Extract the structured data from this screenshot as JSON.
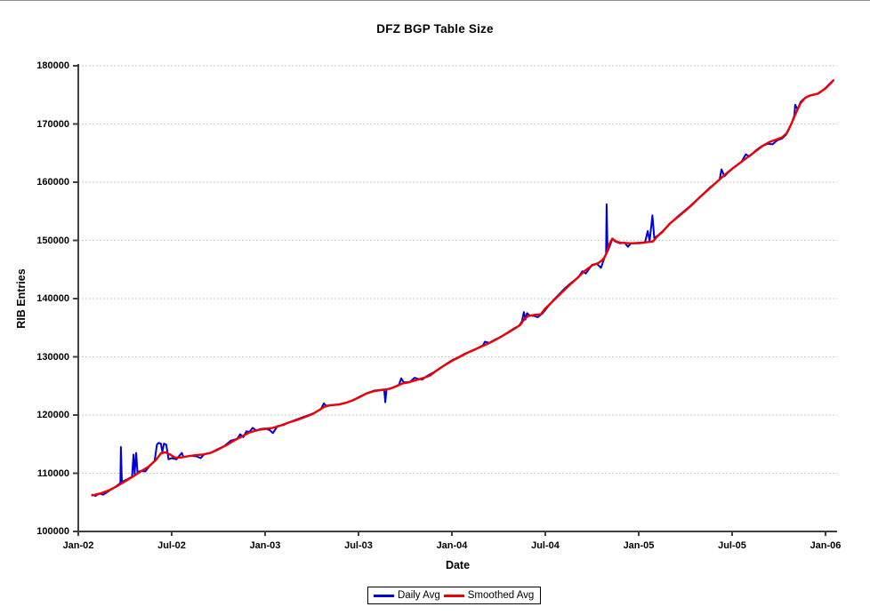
{
  "chart_data": {
    "type": "line",
    "title": "DFZ BGP Table Size",
    "xlabel": "Date",
    "ylabel": "RIB Entries",
    "x_ticks": [
      "Jan-02",
      "Jul-02",
      "Jan-03",
      "Jul-03",
      "Jan-04",
      "Jul-04",
      "Jan-05",
      "Jul-05",
      "Jan-06"
    ],
    "y_ticks": [
      "100000",
      "110000",
      "120000",
      "130000",
      "140000",
      "150000",
      "160000",
      "170000",
      "180000"
    ],
    "ylim": [
      100000,
      180000
    ],
    "xlim_months_from_jan02": [
      0,
      48.8
    ],
    "grid": "horizontal dotted lines at each 10000",
    "legend_position": "bottom-center",
    "axis_color": "#404040",
    "grid_color": "#c9c9c9",
    "background_color": "#ffffff",
    "series": [
      {
        "name": "Daily Avg",
        "color": "#0000d8",
        "points": [
          [
            0.9,
            106300
          ],
          [
            1.1,
            106100
          ],
          [
            1.35,
            106500
          ],
          [
            1.6,
            106300
          ],
          [
            2.0,
            107000
          ],
          [
            2.4,
            107700
          ],
          [
            2.7,
            108300
          ],
          [
            2.74,
            114500
          ],
          [
            2.8,
            108500
          ],
          [
            3.1,
            108900
          ],
          [
            3.45,
            109400
          ],
          [
            3.55,
            113200
          ],
          [
            3.62,
            109900
          ],
          [
            3.72,
            113500
          ],
          [
            3.8,
            110200
          ],
          [
            4.0,
            110400
          ],
          [
            4.3,
            110300
          ],
          [
            4.6,
            111300
          ],
          [
            4.9,
            112100
          ],
          [
            5.05,
            114900
          ],
          [
            5.15,
            115200
          ],
          [
            5.3,
            115100
          ],
          [
            5.4,
            113700
          ],
          [
            5.5,
            115100
          ],
          [
            5.65,
            114900
          ],
          [
            5.8,
            112400
          ],
          [
            6.0,
            112600
          ],
          [
            6.3,
            112400
          ],
          [
            6.65,
            113500
          ],
          [
            6.75,
            112800
          ],
          [
            7.2,
            113000
          ],
          [
            7.6,
            112900
          ],
          [
            7.85,
            112600
          ],
          [
            8.1,
            113300
          ],
          [
            8.5,
            113500
          ],
          [
            9.0,
            114200
          ],
          [
            9.4,
            114700
          ],
          [
            9.8,
            115600
          ],
          [
            10.2,
            115900
          ],
          [
            10.4,
            116700
          ],
          [
            10.6,
            116200
          ],
          [
            10.8,
            117200
          ],
          [
            11.0,
            117100
          ],
          [
            11.2,
            117800
          ],
          [
            11.45,
            117300
          ],
          [
            11.7,
            117600
          ],
          [
            12.0,
            117700
          ],
          [
            12.3,
            117400
          ],
          [
            12.5,
            116900
          ],
          [
            12.8,
            118100
          ],
          [
            13.2,
            118300
          ],
          [
            13.6,
            118800
          ],
          [
            14.0,
            119200
          ],
          [
            14.4,
            119600
          ],
          [
            14.8,
            120000
          ],
          [
            15.2,
            120400
          ],
          [
            15.6,
            121100
          ],
          [
            15.78,
            122000
          ],
          [
            15.9,
            121600
          ],
          [
            16.3,
            121700
          ],
          [
            16.8,
            121800
          ],
          [
            17.3,
            122200
          ],
          [
            17.7,
            122600
          ],
          [
            18.1,
            123200
          ],
          [
            18.6,
            123800
          ],
          [
            19.0,
            124200
          ],
          [
            19.4,
            124300
          ],
          [
            19.65,
            124400
          ],
          [
            19.72,
            122200
          ],
          [
            19.8,
            124400
          ],
          [
            20.2,
            124700
          ],
          [
            20.6,
            125200
          ],
          [
            20.75,
            126300
          ],
          [
            20.9,
            125600
          ],
          [
            21.3,
            125700
          ],
          [
            21.6,
            126400
          ],
          [
            21.85,
            126200
          ],
          [
            22.1,
            126100
          ],
          [
            22.4,
            126700
          ],
          [
            22.8,
            127300
          ],
          [
            23.2,
            128000
          ],
          [
            23.6,
            128700
          ],
          [
            24.0,
            129400
          ],
          [
            24.4,
            129900
          ],
          [
            24.8,
            130500
          ],
          [
            25.2,
            130900
          ],
          [
            25.6,
            131400
          ],
          [
            26.0,
            132000
          ],
          [
            26.12,
            132600
          ],
          [
            26.4,
            132400
          ],
          [
            26.8,
            133000
          ],
          [
            27.2,
            133500
          ],
          [
            27.6,
            134200
          ],
          [
            28.0,
            134900
          ],
          [
            28.3,
            135300
          ],
          [
            28.5,
            136100
          ],
          [
            28.62,
            137700
          ],
          [
            28.72,
            136400
          ],
          [
            28.82,
            137500
          ],
          [
            29.0,
            137100
          ],
          [
            29.3,
            137000
          ],
          [
            29.5,
            136800
          ],
          [
            29.8,
            137400
          ],
          [
            30.1,
            138400
          ],
          [
            30.5,
            139700
          ],
          [
            30.9,
            140800
          ],
          [
            31.3,
            141900
          ],
          [
            31.7,
            142800
          ],
          [
            32.1,
            143600
          ],
          [
            32.38,
            144700
          ],
          [
            32.6,
            144300
          ],
          [
            33.0,
            145800
          ],
          [
            33.3,
            146000
          ],
          [
            33.58,
            145300
          ],
          [
            33.8,
            147000
          ],
          [
            33.9,
            147600
          ],
          [
            33.94,
            156200
          ],
          [
            34.0,
            148100
          ],
          [
            34.15,
            149100
          ],
          [
            34.3,
            150200
          ],
          [
            34.5,
            149800
          ],
          [
            34.8,
            149500
          ],
          [
            35.1,
            149600
          ],
          [
            35.3,
            148900
          ],
          [
            35.5,
            149500
          ],
          [
            36.0,
            149500
          ],
          [
            36.4,
            149600
          ],
          [
            36.58,
            151600
          ],
          [
            36.7,
            149900
          ],
          [
            36.88,
            154300
          ],
          [
            37.0,
            150400
          ],
          [
            37.3,
            151000
          ],
          [
            37.7,
            152000
          ],
          [
            38.1,
            153100
          ],
          [
            38.5,
            154100
          ],
          [
            38.9,
            155000
          ],
          [
            39.3,
            155900
          ],
          [
            39.7,
            156900
          ],
          [
            40.1,
            157900
          ],
          [
            40.5,
            158900
          ],
          [
            40.9,
            159800
          ],
          [
            41.2,
            160500
          ],
          [
            41.32,
            162200
          ],
          [
            41.5,
            161000
          ],
          [
            41.8,
            161800
          ],
          [
            42.2,
            162700
          ],
          [
            42.6,
            163500
          ],
          [
            42.88,
            164800
          ],
          [
            43.1,
            164400
          ],
          [
            43.5,
            165400
          ],
          [
            43.9,
            166200
          ],
          [
            44.3,
            166600
          ],
          [
            44.6,
            166500
          ],
          [
            44.9,
            167200
          ],
          [
            45.2,
            167500
          ],
          [
            45.45,
            168100
          ],
          [
            45.65,
            169100
          ],
          [
            45.85,
            170300
          ],
          [
            46.0,
            171500
          ],
          [
            46.05,
            173300
          ],
          [
            46.2,
            172500
          ],
          [
            46.4,
            173800
          ],
          [
            46.6,
            174300
          ],
          [
            46.9,
            174800
          ],
          [
            47.2,
            175000
          ],
          [
            47.6,
            175300
          ],
          [
            48.0,
            176200
          ],
          [
            48.3,
            177000
          ],
          [
            48.5,
            177500
          ]
        ]
      },
      {
        "name": "Smoothed Avg",
        "color": "#ee0000",
        "points": [
          [
            0.9,
            106200
          ],
          [
            1.5,
            106600
          ],
          [
            2.0,
            107100
          ],
          [
            2.5,
            107800
          ],
          [
            3.0,
            108600
          ],
          [
            3.5,
            109400
          ],
          [
            4.0,
            110300
          ],
          [
            4.5,
            111100
          ],
          [
            5.0,
            112300
          ],
          [
            5.3,
            113400
          ],
          [
            5.6,
            113600
          ],
          [
            5.9,
            113200
          ],
          [
            6.2,
            112700
          ],
          [
            6.6,
            112700
          ],
          [
            7.0,
            112900
          ],
          [
            7.5,
            113100
          ],
          [
            8.0,
            113200
          ],
          [
            8.5,
            113500
          ],
          [
            9.0,
            114100
          ],
          [
            9.5,
            114800
          ],
          [
            10.0,
            115600
          ],
          [
            10.5,
            116300
          ],
          [
            11.0,
            117000
          ],
          [
            11.5,
            117400
          ],
          [
            12.0,
            117600
          ],
          [
            12.5,
            117800
          ],
          [
            13.0,
            118200
          ],
          [
            13.5,
            118700
          ],
          [
            14.0,
            119100
          ],
          [
            14.5,
            119600
          ],
          [
            15.0,
            120100
          ],
          [
            15.5,
            120900
          ],
          [
            15.8,
            121400
          ],
          [
            16.2,
            121700
          ],
          [
            16.7,
            121800
          ],
          [
            17.2,
            122100
          ],
          [
            17.6,
            122500
          ],
          [
            18.0,
            123000
          ],
          [
            18.5,
            123700
          ],
          [
            19.0,
            124100
          ],
          [
            19.5,
            124300
          ],
          [
            20.0,
            124500
          ],
          [
            20.4,
            124900
          ],
          [
            20.8,
            125400
          ],
          [
            21.2,
            125600
          ],
          [
            21.7,
            126000
          ],
          [
            22.2,
            126400
          ],
          [
            22.6,
            126800
          ],
          [
            23.0,
            127600
          ],
          [
            23.5,
            128500
          ],
          [
            24.0,
            129300
          ],
          [
            24.5,
            130000
          ],
          [
            25.0,
            130700
          ],
          [
            25.5,
            131300
          ],
          [
            26.0,
            131900
          ],
          [
            26.5,
            132500
          ],
          [
            27.0,
            133200
          ],
          [
            27.5,
            134000
          ],
          [
            28.0,
            134800
          ],
          [
            28.4,
            135500
          ],
          [
            28.65,
            136500
          ],
          [
            28.9,
            137000
          ],
          [
            29.3,
            137200
          ],
          [
            29.7,
            137300
          ],
          [
            30.0,
            138300
          ],
          [
            30.5,
            139600
          ],
          [
            31.0,
            140900
          ],
          [
            31.5,
            142200
          ],
          [
            32.0,
            143400
          ],
          [
            32.5,
            144700
          ],
          [
            33.0,
            145700
          ],
          [
            33.4,
            146100
          ],
          [
            33.7,
            146700
          ],
          [
            33.9,
            147600
          ],
          [
            34.1,
            149300
          ],
          [
            34.3,
            150300
          ],
          [
            34.5,
            149900
          ],
          [
            34.8,
            149600
          ],
          [
            35.5,
            149500
          ],
          [
            36.2,
            149600
          ],
          [
            36.9,
            149800
          ],
          [
            37.2,
            150700
          ],
          [
            37.5,
            151400
          ],
          [
            38.0,
            152900
          ],
          [
            38.5,
            154000
          ],
          [
            39.0,
            155100
          ],
          [
            39.5,
            156300
          ],
          [
            40.0,
            157600
          ],
          [
            40.5,
            158800
          ],
          [
            41.0,
            160000
          ],
          [
            41.5,
            161200
          ],
          [
            42.0,
            162300
          ],
          [
            42.5,
            163300
          ],
          [
            43.0,
            164300
          ],
          [
            43.5,
            165300
          ],
          [
            44.0,
            166300
          ],
          [
            44.4,
            166900
          ],
          [
            44.8,
            167300
          ],
          [
            45.2,
            167700
          ],
          [
            45.5,
            168400
          ],
          [
            45.8,
            170000
          ],
          [
            46.1,
            171900
          ],
          [
            46.4,
            173600
          ],
          [
            46.7,
            174500
          ],
          [
            47.0,
            174900
          ],
          [
            47.5,
            175200
          ],
          [
            48.0,
            176100
          ],
          [
            48.3,
            176900
          ],
          [
            48.5,
            177500
          ]
        ]
      }
    ]
  }
}
